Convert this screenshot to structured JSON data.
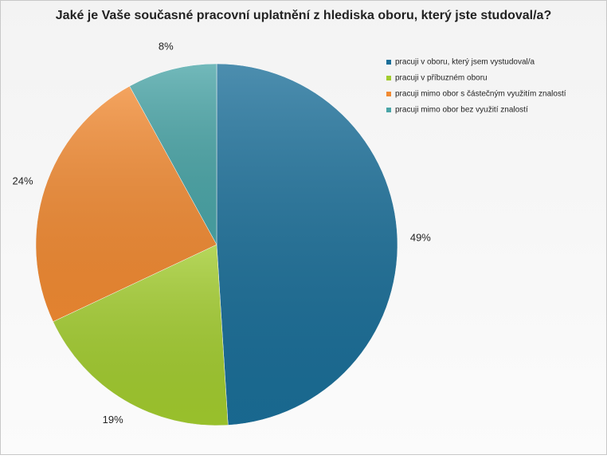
{
  "chart_data": {
    "type": "pie",
    "title": "Jaké je Vaše současné pracovní uplatnění z hlediska oboru, který jste studoval/a?",
    "categories": [
      "pracuji v oboru, který jsem vystudoval/a",
      "pracuji v příbuzném oboru",
      "pracuji mimo obor s částečným využitím znalostí",
      "pracuji mimo obor bez využití znalostí"
    ],
    "values": [
      49,
      19,
      24,
      8
    ],
    "value_labels": [
      "49%",
      "19%",
      "24%",
      "8%"
    ],
    "colors": [
      "#1a6e98",
      "#a2cc2e",
      "#f18a32",
      "#4aa5a7"
    ],
    "legend": "right"
  }
}
